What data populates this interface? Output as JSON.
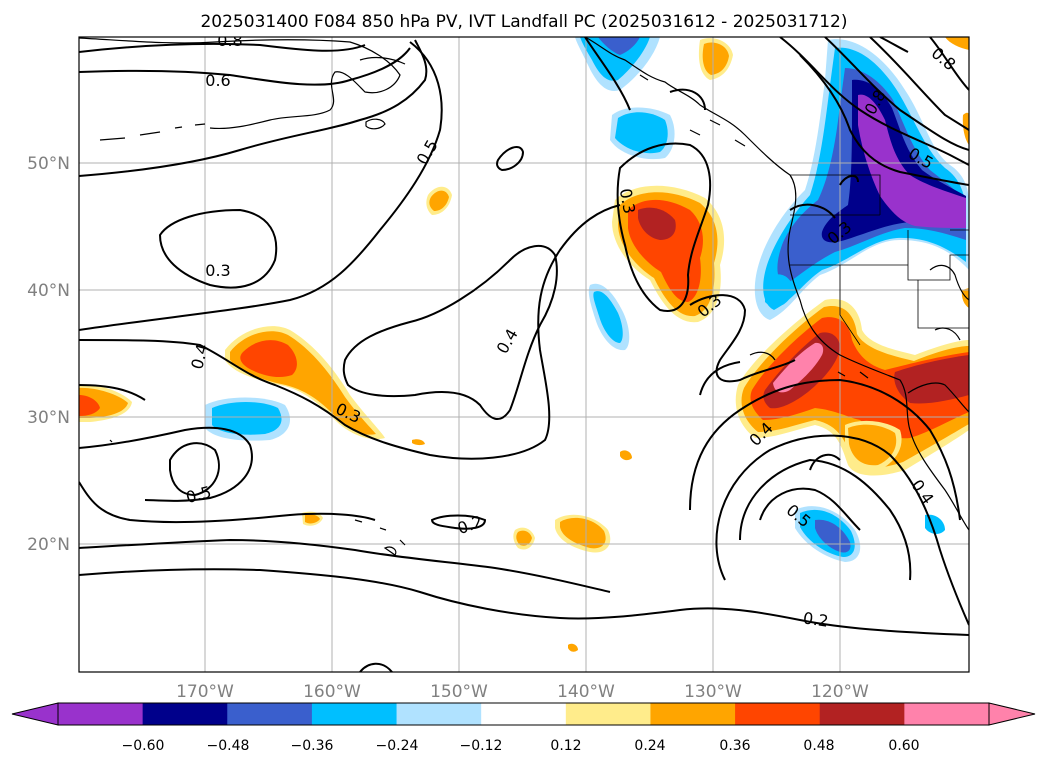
{
  "title": "2025031400 F084 850 hPa PV, IVT Landfall PC (2025031612 - 2025031712)",
  "latitude_labels": [
    "50°N",
    "40°N",
    "30°N",
    "20°N"
  ],
  "longitude_labels": [
    "170°W",
    "160°W",
    "150°W",
    "140°W",
    "130°W",
    "120°W"
  ],
  "colorbar": {
    "tick_labels": [
      "−0.60",
      "−0.48",
      "−0.36",
      "−0.24",
      "−0.12",
      "0.12",
      "0.24",
      "0.36",
      "0.48",
      "0.60"
    ],
    "colors": [
      "#9932cc",
      "#00008b",
      "#3a5fcd",
      "#00bfff",
      "#b0e2ff",
      "#ffffff",
      "#ffec8b",
      "#ffa500",
      "#ff4500",
      "#b22222",
      "#ff82ab"
    ]
  },
  "contour_labels": [
    {
      "text": "0.8"
    },
    {
      "text": "0.6"
    },
    {
      "text": "0.5"
    },
    {
      "text": "0.3"
    },
    {
      "text": "0.4"
    },
    {
      "text": "0.3"
    },
    {
      "text": "0.5"
    },
    {
      "text": "0.2"
    },
    {
      "text": "0.4"
    },
    {
      "text": "0.3"
    },
    {
      "text": "0.3"
    },
    {
      "text": "0.8"
    },
    {
      "text": "0.8"
    },
    {
      "text": "0.5"
    },
    {
      "text": "0.3"
    },
    {
      "text": "0.4"
    },
    {
      "text": "0.5"
    },
    {
      "text": "0.4"
    },
    {
      "text": "0.2"
    }
  ]
}
